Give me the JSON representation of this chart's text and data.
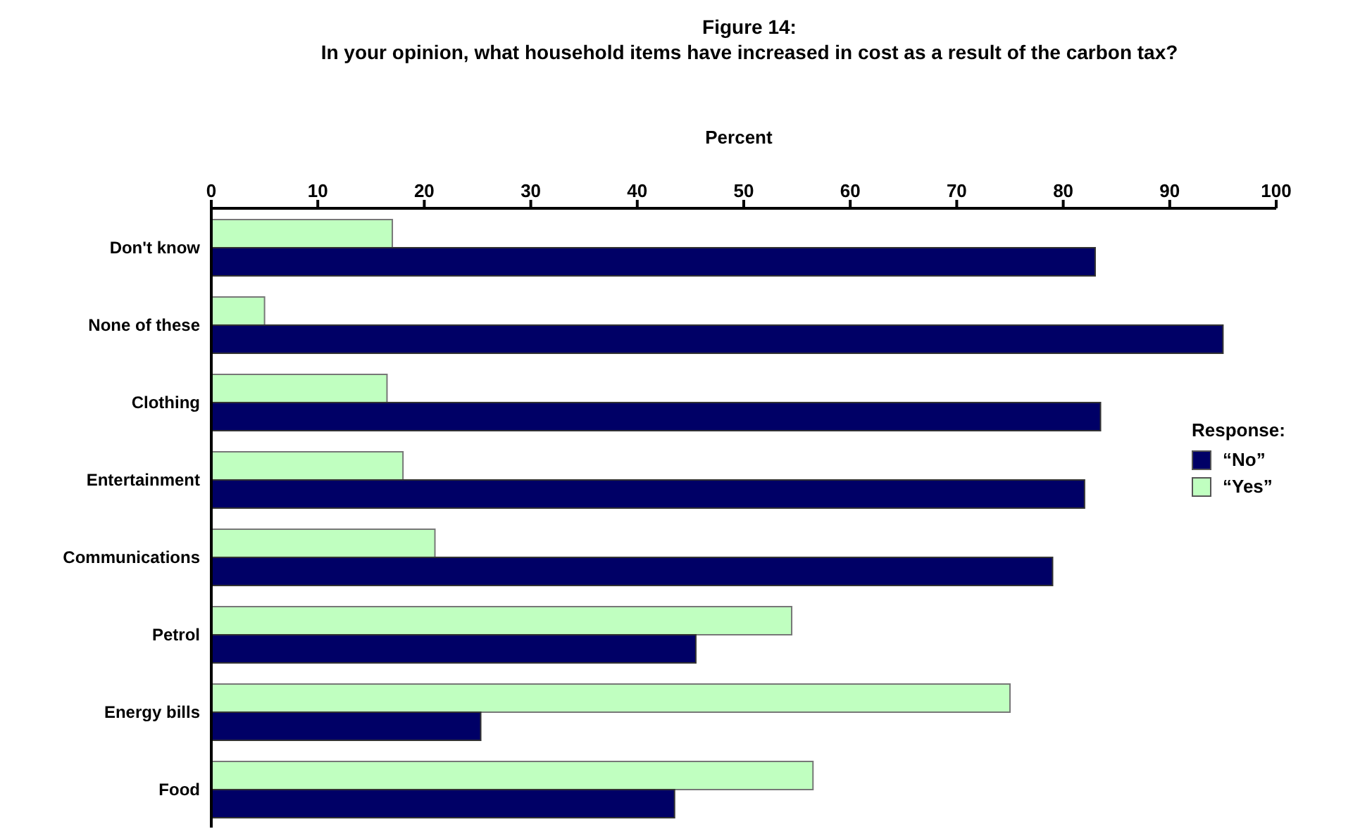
{
  "chart_data": {
    "type": "bar",
    "orientation": "horizontal",
    "title": "Figure 14:",
    "subtitle": "In your opinion, what household items have increased in cost as a result of the carbon tax?",
    "xlabel": "Percent",
    "legend_title": "Response:",
    "categories": [
      "Don't know",
      "None of these",
      "Clothing",
      "Entertainment",
      "Communications",
      "Petrol",
      "Energy bills",
      "Food"
    ],
    "series": [
      {
        "name": "“No”",
        "color": "#000066",
        "values": [
          83,
          95,
          83.5,
          82,
          79,
          45.5,
          25.3,
          43.5
        ]
      },
      {
        "name": "“Yes”",
        "color": "#c0ffc0",
        "values": [
          17,
          5,
          16.5,
          18,
          21,
          54.5,
          75,
          56.5
        ]
      }
    ],
    "xlim": [
      0,
      100
    ],
    "xticks": [
      0,
      10,
      20,
      30,
      40,
      50,
      60,
      70,
      80,
      90,
      100
    ],
    "grid": false,
    "legend": "right"
  }
}
